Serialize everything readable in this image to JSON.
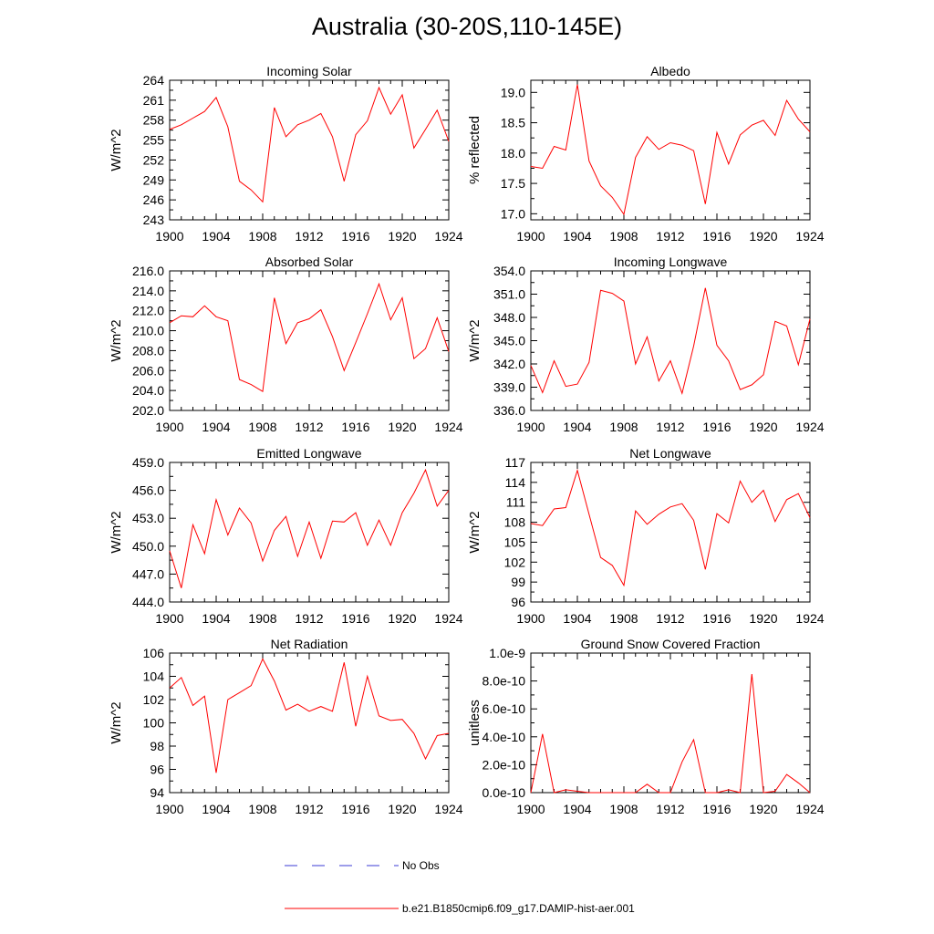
{
  "figure": {
    "title": "Australia (30-20S,110-145E)",
    "series_color": "#ff0000",
    "obs_color": "#3b3bd6"
  },
  "legend": {
    "obs_label": "No Obs",
    "model_label": "b.e21.B1850cmip6.f09_g17.DAMIP-hist-aer.001"
  },
  "chart_data": [
    {
      "type": "line",
      "title": "Incoming Solar",
      "ylabel": "W/m^2",
      "ylim": [
        243,
        264
      ],
      "yticks": [
        "243",
        "246",
        "249",
        "252",
        "255",
        "258",
        "261",
        "264"
      ],
      "xlim": [
        1900,
        1924
      ],
      "xticks": [
        "1900",
        "1904",
        "1908",
        "1912",
        "1916",
        "1920",
        "1924"
      ],
      "x": [
        1900,
        1901,
        1902,
        1903,
        1904,
        1905,
        1906,
        1907,
        1908,
        1909,
        1910,
        1911,
        1912,
        1913,
        1914,
        1915,
        1916,
        1917,
        1918,
        1919,
        1920,
        1921,
        1922,
        1923,
        1924
      ],
      "values": [
        256.6,
        257.3,
        258.3,
        259.3,
        261.4,
        257.0,
        248.8,
        247.5,
        245.7,
        259.9,
        255.5,
        257.3,
        258.0,
        259.0,
        255.5,
        248.8,
        255.8,
        257.9,
        262.9,
        258.9,
        261.8,
        253.8,
        256.6,
        259.5,
        254.8
      ]
    },
    {
      "type": "line",
      "title": "Albedo",
      "ylabel": "% reflected",
      "ylim": [
        16.9,
        19.2
      ],
      "yticks": [
        "17.0",
        "17.5",
        "18.0",
        "18.5",
        "19.0"
      ],
      "xlim": [
        1900,
        1924
      ],
      "xticks": [
        "1900",
        "1904",
        "1908",
        "1912",
        "1916",
        "1920",
        "1924"
      ],
      "x": [
        1900,
        1901,
        1902,
        1903,
        1904,
        1905,
        1906,
        1907,
        1908,
        1909,
        1910,
        1911,
        1912,
        1913,
        1914,
        1915,
        1916,
        1917,
        1918,
        1919,
        1920,
        1921,
        1922,
        1923,
        1924
      ],
      "values": [
        17.78,
        17.75,
        18.11,
        18.05,
        19.13,
        17.87,
        17.46,
        17.27,
        16.99,
        17.93,
        18.27,
        18.06,
        18.17,
        18.13,
        18.04,
        17.16,
        18.34,
        17.82,
        18.3,
        18.46,
        18.54,
        18.29,
        18.87,
        18.56,
        18.35
      ]
    },
    {
      "type": "line",
      "title": "Absorbed Solar",
      "ylabel": "W/m^2",
      "ylim": [
        202,
        216
      ],
      "yticks": [
        "202.0",
        "204.0",
        "206.0",
        "208.0",
        "210.0",
        "212.0",
        "214.0",
        "216.0"
      ],
      "xlim": [
        1900,
        1924
      ],
      "xticks": [
        "1900",
        "1904",
        "1908",
        "1912",
        "1916",
        "1920",
        "1924"
      ],
      "x": [
        1900,
        1901,
        1902,
        1903,
        1904,
        1905,
        1906,
        1907,
        1908,
        1909,
        1910,
        1911,
        1912,
        1913,
        1914,
        1915,
        1916,
        1917,
        1918,
        1919,
        1920,
        1921,
        1922,
        1923,
        1924
      ],
      "values": [
        210.8,
        211.5,
        211.4,
        212.5,
        211.4,
        211.0,
        205.1,
        204.6,
        203.9,
        213.3,
        208.7,
        210.8,
        211.2,
        212.1,
        209.4,
        206.0,
        208.8,
        211.7,
        214.7,
        211.1,
        213.3,
        207.2,
        208.2,
        211.3,
        207.9
      ]
    },
    {
      "type": "line",
      "title": "Incoming Longwave",
      "ylabel": "W/m^2",
      "ylim": [
        336,
        354
      ],
      "yticks": [
        "336.0",
        "339.0",
        "342.0",
        "345.0",
        "348.0",
        "351.0",
        "354.0"
      ],
      "xlim": [
        1900,
        1924
      ],
      "xticks": [
        "1900",
        "1904",
        "1908",
        "1912",
        "1916",
        "1920",
        "1924"
      ],
      "x": [
        1900,
        1901,
        1902,
        1903,
        1904,
        1905,
        1906,
        1907,
        1908,
        1909,
        1910,
        1911,
        1912,
        1913,
        1914,
        1915,
        1916,
        1917,
        1918,
        1919,
        1920,
        1921,
        1922,
        1923,
        1924
      ],
      "values": [
        341.8,
        338.3,
        342.4,
        339.1,
        339.4,
        342.2,
        351.5,
        351.1,
        350.1,
        342.0,
        345.5,
        339.8,
        342.4,
        338.2,
        344.3,
        351.8,
        344.4,
        342.4,
        338.7,
        339.3,
        340.6,
        347.5,
        346.9,
        341.9,
        347.8
      ]
    },
    {
      "type": "line",
      "title": "Emitted Longwave",
      "ylabel": "W/m^2",
      "ylim": [
        444,
        459
      ],
      "yticks": [
        "444.0",
        "447.0",
        "450.0",
        "453.0",
        "456.0",
        "459.0"
      ],
      "xlim": [
        1900,
        1924
      ],
      "xticks": [
        "1900",
        "1904",
        "1908",
        "1912",
        "1916",
        "1920",
        "1924"
      ],
      "x": [
        1900,
        1901,
        1902,
        1903,
        1904,
        1905,
        1906,
        1907,
        1908,
        1909,
        1910,
        1911,
        1912,
        1913,
        1914,
        1915,
        1916,
        1917,
        1918,
        1919,
        1920,
        1921,
        1922,
        1923,
        1924
      ],
      "values": [
        449.5,
        445.5,
        452.3,
        449.2,
        455.0,
        451.2,
        454.1,
        452.5,
        448.4,
        451.7,
        453.2,
        448.9,
        452.6,
        448.7,
        452.7,
        452.6,
        453.6,
        450.1,
        452.8,
        450.1,
        453.6,
        455.7,
        458.2,
        454.3,
        456.0
      ]
    },
    {
      "type": "line",
      "title": "Net Longwave",
      "ylabel": "W/m^2",
      "ylim": [
        96,
        117
      ],
      "yticks": [
        "96",
        "99",
        "102",
        "105",
        "108",
        "111",
        "114",
        "117"
      ],
      "xlim": [
        1900,
        1924
      ],
      "xticks": [
        "1900",
        "1904",
        "1908",
        "1912",
        "1916",
        "1920",
        "1924"
      ],
      "x": [
        1900,
        1901,
        1902,
        1903,
        1904,
        1905,
        1906,
        1907,
        1908,
        1909,
        1910,
        1911,
        1912,
        1913,
        1914,
        1915,
        1916,
        1917,
        1918,
        1919,
        1920,
        1921,
        1922,
        1923,
        1924
      ],
      "values": [
        107.8,
        107.5,
        110.0,
        110.2,
        115.8,
        109.2,
        102.7,
        101.5,
        98.5,
        109.7,
        107.7,
        109.2,
        110.3,
        110.8,
        108.3,
        100.9,
        109.3,
        107.9,
        114.2,
        111.0,
        112.8,
        108.1,
        111.4,
        112.3,
        108.7
      ]
    },
    {
      "type": "line",
      "title": "Net Radiation",
      "ylabel": "W/m^2",
      "ylim": [
        94,
        106
      ],
      "yticks": [
        "94",
        "96",
        "98",
        "100",
        "102",
        "104",
        "106"
      ],
      "xlim": [
        1900,
        1924
      ],
      "xticks": [
        "1900",
        "1904",
        "1908",
        "1912",
        "1916",
        "1920",
        "1924"
      ],
      "x": [
        1900,
        1901,
        1902,
        1903,
        1904,
        1905,
        1906,
        1907,
        1908,
        1909,
        1910,
        1911,
        1912,
        1913,
        1914,
        1915,
        1916,
        1917,
        1918,
        1919,
        1920,
        1921,
        1922,
        1923,
        1924
      ],
      "values": [
        103.0,
        103.9,
        101.5,
        102.3,
        95.7,
        102.0,
        102.6,
        103.2,
        105.5,
        103.6,
        101.1,
        101.6,
        101.0,
        101.4,
        101.0,
        105.2,
        99.7,
        104.0,
        100.6,
        100.2,
        100.3,
        99.1,
        96.9,
        98.9,
        99.1
      ]
    },
    {
      "type": "line",
      "title": "Ground Snow Covered Fraction",
      "ylabel": "unitless",
      "ylim": [
        0,
        1e-09
      ],
      "yticks": [
        "0.0e-10",
        "2.0e-10",
        "4.0e-10",
        "6.0e-10",
        "8.0e-10",
        "1.0e-9"
      ],
      "xlim": [
        1900,
        1924
      ],
      "xticks": [
        "1900",
        "1904",
        "1908",
        "1912",
        "1916",
        "1920",
        "1924"
      ],
      "x": [
        1900,
        1901,
        1902,
        1903,
        1904,
        1905,
        1906,
        1907,
        1908,
        1909,
        1910,
        1911,
        1912,
        1913,
        1914,
        1915,
        1916,
        1917,
        1918,
        1919,
        1920,
        1921,
        1922,
        1923,
        1924
      ],
      "values": [
        0.0,
        4.2e-10,
        0.0,
        2e-11,
        1e-11,
        0.0,
        0.0,
        0.0,
        0.0,
        0.0,
        6e-11,
        0.0,
        0.0,
        2.2e-10,
        3.8e-10,
        0.0,
        0.0,
        2e-11,
        0.0,
        8.5e-10,
        0.0,
        1e-11,
        1.3e-10,
        7e-11,
        0.0
      ]
    }
  ]
}
